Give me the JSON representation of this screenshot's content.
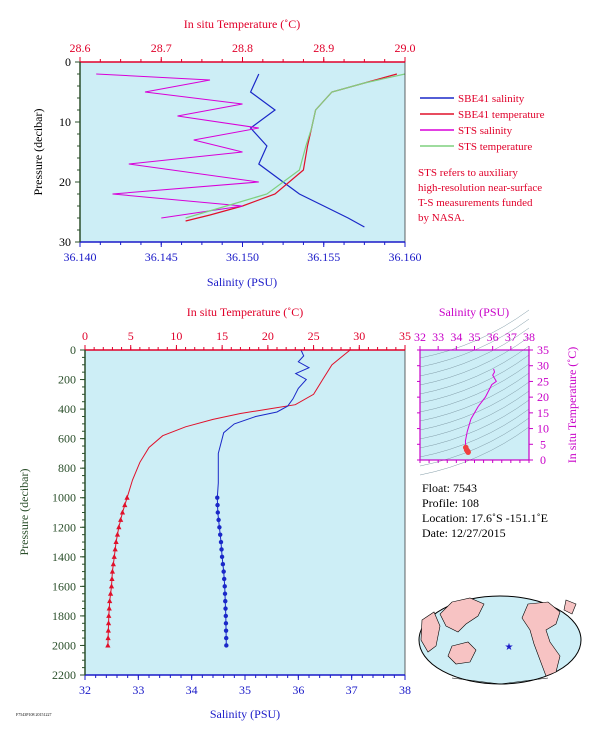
{
  "colors": {
    "plot_bg": "#cdeef6",
    "temperature": "#e0102a",
    "salinity": "#1a28c8",
    "sts_salinity": "#d800d8",
    "sts_temperature": "#7fd07f",
    "axis_temp": "#e0002a",
    "axis_sal": "#1a1ac8",
    "axis_pressure": "#2b4f2b",
    "ts_axis": "#c800c8"
  },
  "top_chart": {
    "top_axis_title": "In situ Temperature (˚C)",
    "bottom_axis_title": "Salinity (PSU)",
    "left_axis_title": "Pressure (decibar)",
    "temp_ticks": [
      "28.6",
      "28.7",
      "28.8",
      "28.9",
      "29.0"
    ],
    "sal_ticks": [
      "36.140",
      "36.145",
      "36.150",
      "36.155",
      "36.160"
    ],
    "pres_ticks": [
      "0",
      "10",
      "20",
      "30"
    ],
    "legend": [
      {
        "label": "SBE41 salinity",
        "color": "#1a28c8"
      },
      {
        "label": "SBE41 temperature",
        "color": "#e0102a"
      },
      {
        "label": "STS salinity",
        "color": "#d800d8"
      },
      {
        "label": "STS temperature",
        "color": "#7fd07f"
      }
    ],
    "note_lines": [
      "STS refers to auxiliary",
      "high-resolution near-surface",
      "T-S measurements funded",
      "by NASA."
    ]
  },
  "main_chart": {
    "top_axis_title": "In situ Temperature (˚C)",
    "bottom_axis_title": "Salinity (PSU)",
    "left_axis_title": "Pressure (decibar)",
    "temp_ticks": [
      "0",
      "5",
      "10",
      "15",
      "20",
      "25",
      "30",
      "35"
    ],
    "sal_ticks": [
      "32",
      "33",
      "34",
      "35",
      "36",
      "37",
      "38"
    ],
    "pres_ticks": [
      "0",
      "200",
      "400",
      "600",
      "800",
      "1000",
      "1200",
      "1400",
      "1600",
      "1800",
      "2000",
      "2200"
    ]
  },
  "ts_chart": {
    "top_axis_title": "Salinity (PSU)",
    "right_axis_title": "In situ Temperature (˚C)",
    "sal_ticks": [
      "32",
      "33",
      "34",
      "35",
      "36",
      "37",
      "38"
    ],
    "temp_ticks": [
      "0",
      "5",
      "10",
      "15",
      "20",
      "25",
      "30",
      "35"
    ]
  },
  "info": {
    "float": "Float:  7543",
    "profile": "Profile:  108",
    "location": "Location:  17.6˚S  -151.1˚E",
    "date": "Date:  12/27/2015"
  },
  "footer_code": "F7543P108 20151227",
  "chart_data": [
    {
      "type": "line",
      "title": "",
      "xlabel": "Salinity (PSU) / In situ Temperature (˚C)",
      "ylabel": "Pressure (decibar)",
      "xlim_salinity": [
        36.14,
        36.16
      ],
      "xlim_temperature": [
        28.6,
        29.0
      ],
      "ylim": [
        30,
        0
      ],
      "series": [
        {
          "name": "SBE41 salinity",
          "x": [
            36.151,
            36.1505,
            36.152,
            36.1505,
            36.1515,
            36.151,
            36.1525,
            36.1535,
            36.155,
            36.1565,
            36.1575
          ],
          "y": [
            2,
            5,
            8,
            11,
            14,
            17,
            20,
            22,
            24,
            26,
            27.5
          ]
        },
        {
          "name": "SBE41 temperature",
          "x": [
            28.99,
            28.95,
            28.91,
            28.89,
            28.885,
            28.88,
            28.875,
            28.84,
            28.8,
            28.76,
            28.73
          ],
          "y": [
            2,
            3.5,
            5,
            8,
            11,
            14,
            18,
            22,
            24,
            25.5,
            26.5
          ]
        },
        {
          "name": "STS salinity",
          "x": [
            36.141,
            36.148,
            36.144,
            36.15,
            36.146,
            36.151,
            36.147,
            36.15,
            36.143,
            36.151,
            36.142,
            36.15,
            36.145
          ],
          "y": [
            2,
            3,
            5,
            7,
            9,
            11,
            13,
            15,
            17,
            20,
            22,
            24,
            26
          ]
        },
        {
          "name": "STS temperature",
          "x": [
            29.0,
            28.95,
            28.91,
            28.89,
            28.885,
            28.878,
            28.87,
            28.83,
            28.78,
            28.73
          ],
          "y": [
            2,
            3.5,
            5,
            8,
            11,
            14,
            18,
            22,
            24,
            26
          ]
        }
      ]
    },
    {
      "type": "line",
      "title": "",
      "xlabel": "Salinity (PSU)",
      "ylabel": "Pressure (decibar)",
      "xlim_salinity": [
        32,
        38
      ],
      "xlim_temperature": [
        0,
        35
      ],
      "ylim": [
        2200,
        0
      ],
      "series": [
        {
          "name": "Temperature",
          "x": [
            29.0,
            28.0,
            27.0,
            26.0,
            25.0,
            23.0,
            20.0,
            17.0,
            14.0,
            11.0,
            8.5,
            7.0,
            6.0,
            5.2,
            4.6,
            4.1,
            3.7,
            3.4,
            3.2,
            3.0,
            2.9,
            2.7,
            2.6,
            2.5
          ],
          "y": [
            0,
            50,
            100,
            200,
            300,
            370,
            400,
            430,
            470,
            520,
            580,
            660,
            760,
            880,
            1000,
            1100,
            1200,
            1300,
            1400,
            1500,
            1600,
            1700,
            1800,
            2000
          ]
        },
        {
          "name": "Salinity",
          "x": [
            36.05,
            36.1,
            36.0,
            36.2,
            35.95,
            36.15,
            36.0,
            35.9,
            35.8,
            35.6,
            35.2,
            34.8,
            34.6,
            34.5,
            34.5,
            34.48,
            34.49,
            34.52,
            34.55,
            34.57,
            34.6,
            34.62,
            34.64,
            34.65
          ],
          "y": [
            0,
            40,
            80,
            120,
            160,
            200,
            260,
            330,
            380,
            420,
            450,
            500,
            560,
            700,
            900,
            1000,
            1100,
            1200,
            1300,
            1400,
            1500,
            1600,
            1800,
            2000
          ]
        }
      ]
    },
    {
      "type": "scatter",
      "title": "",
      "xlabel": "Salinity (PSU)",
      "ylabel": "In situ Temperature (˚C)",
      "xlim": [
        32,
        38
      ],
      "ylim": [
        0,
        35
      ],
      "series": [
        {
          "name": "T-S",
          "x": [
            36.05,
            36.1,
            36.0,
            36.2,
            35.95,
            35.6,
            35.2,
            34.8,
            34.6,
            34.5,
            34.52,
            34.57,
            34.62,
            34.65
          ],
          "y": [
            29,
            28,
            27,
            25,
            24,
            20,
            17,
            13,
            9,
            6,
            4,
            3.2,
            2.8,
            2.5
          ]
        }
      ]
    }
  ]
}
